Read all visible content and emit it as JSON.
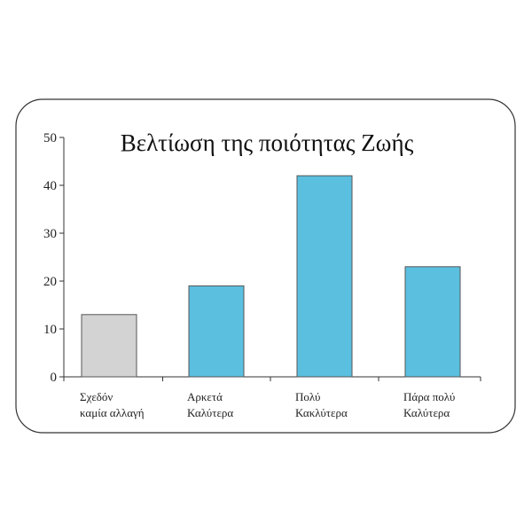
{
  "chart_data": {
    "type": "bar",
    "title": "Βελτίωση της ποιότητας Ζωής",
    "xlabel": "",
    "ylabel": "",
    "ylim": [
      0,
      50
    ],
    "yticks": [
      0,
      10,
      20,
      30,
      40,
      50
    ],
    "categories": [
      [
        "Σχεδόν",
        "καμία αλλαγή"
      ],
      [
        "Αρκετά",
        "Καλύτερα"
      ],
      [
        "Πολύ",
        "Κακλύτερα"
      ],
      [
        "Πάρα πολύ",
        "Καλύτερα"
      ]
    ],
    "values": [
      13,
      19,
      42,
      23
    ],
    "bar_colors": [
      "#d3d3d3",
      "#5bbfe0",
      "#5bbfe0",
      "#5bbfe0"
    ],
    "bar_stroke": "#555555",
    "axis_color": "#333333",
    "frame_color": "#333333",
    "grid": false,
    "legend": "none"
  }
}
